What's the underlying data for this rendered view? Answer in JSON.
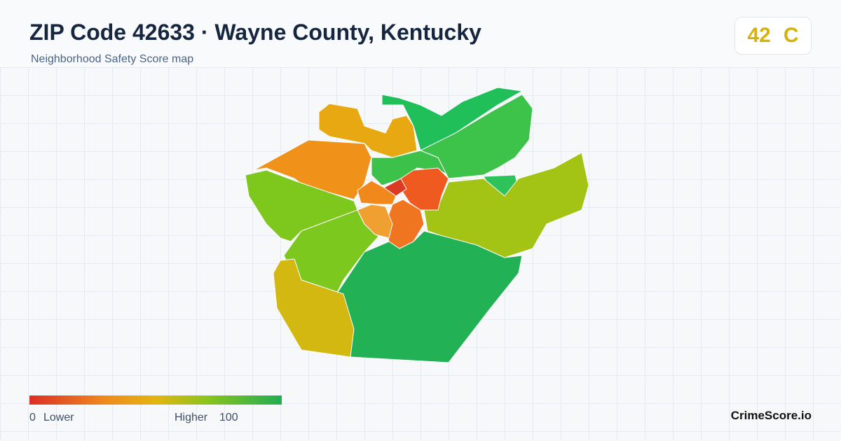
{
  "header": {
    "title": "ZIP Code 42633 · Wayne County, Kentucky",
    "subtitle": "Neighborhood Safety Score map"
  },
  "badge": {
    "score": "42",
    "grade": "C"
  },
  "legend": {
    "min": "0",
    "min_label": "Lower",
    "max_label": "Higher",
    "max": "100"
  },
  "footer": {
    "brand": "CrimeScore.io"
  }
}
